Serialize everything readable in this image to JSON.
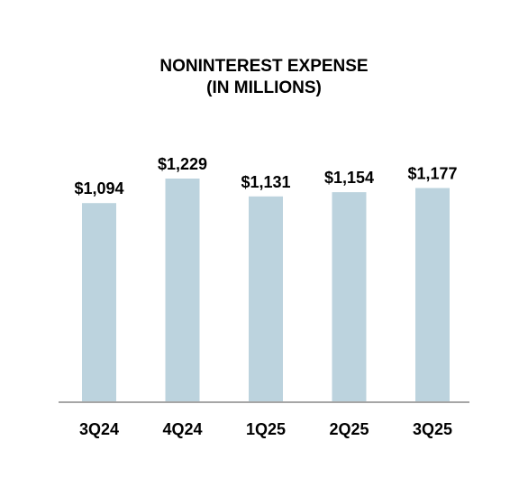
{
  "chart_data": {
    "type": "bar",
    "title": "NONINTEREST EXPENSE",
    "subtitle": "(IN MILLIONS)",
    "categories": [
      "3Q24",
      "4Q24",
      "1Q25",
      "2Q25",
      "3Q25"
    ],
    "values": [
      1094,
      1229,
      1131,
      1154,
      1177
    ],
    "value_labels": [
      "$1,094",
      "$1,229",
      "$1,131",
      "$1,154",
      "$1,177"
    ],
    "xlabel": "",
    "ylabel": "",
    "ylim": [
      0,
      1300
    ],
    "grid": false,
    "legend": "none",
    "bar_color": "#bcd3de",
    "axis_color": "#a6a6a6"
  }
}
